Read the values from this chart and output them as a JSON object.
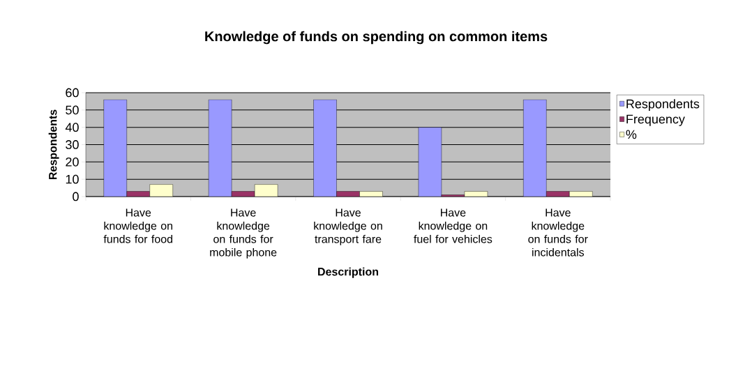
{
  "chart_data": {
    "type": "bar",
    "title": "Knowledge of funds on spending on common items",
    "xlabel": "Description",
    "ylabel": "Respondents",
    "categories": [
      "Have knowledge on funds for food",
      "Have knowledge on funds for mobile phone",
      "Have knowledge on transport fare",
      "Have knowledge on fuel for vehicles",
      "Have knowledge on funds for incidentals"
    ],
    "series": [
      {
        "name": "Respondents",
        "color": "#9999ff",
        "values": [
          56,
          56,
          56,
          40,
          56
        ]
      },
      {
        "name": "Frequency",
        "color": "#993366",
        "values": [
          3,
          3,
          3,
          1,
          3
        ]
      },
      {
        "name": "%",
        "color": "#ffffcc",
        "values": [
          7,
          7,
          3,
          3,
          3
        ]
      }
    ],
    "ylim": [
      0,
      60
    ],
    "yticks": [
      0,
      10,
      20,
      30,
      40,
      50,
      60
    ],
    "grid": "y",
    "legend": "right"
  }
}
